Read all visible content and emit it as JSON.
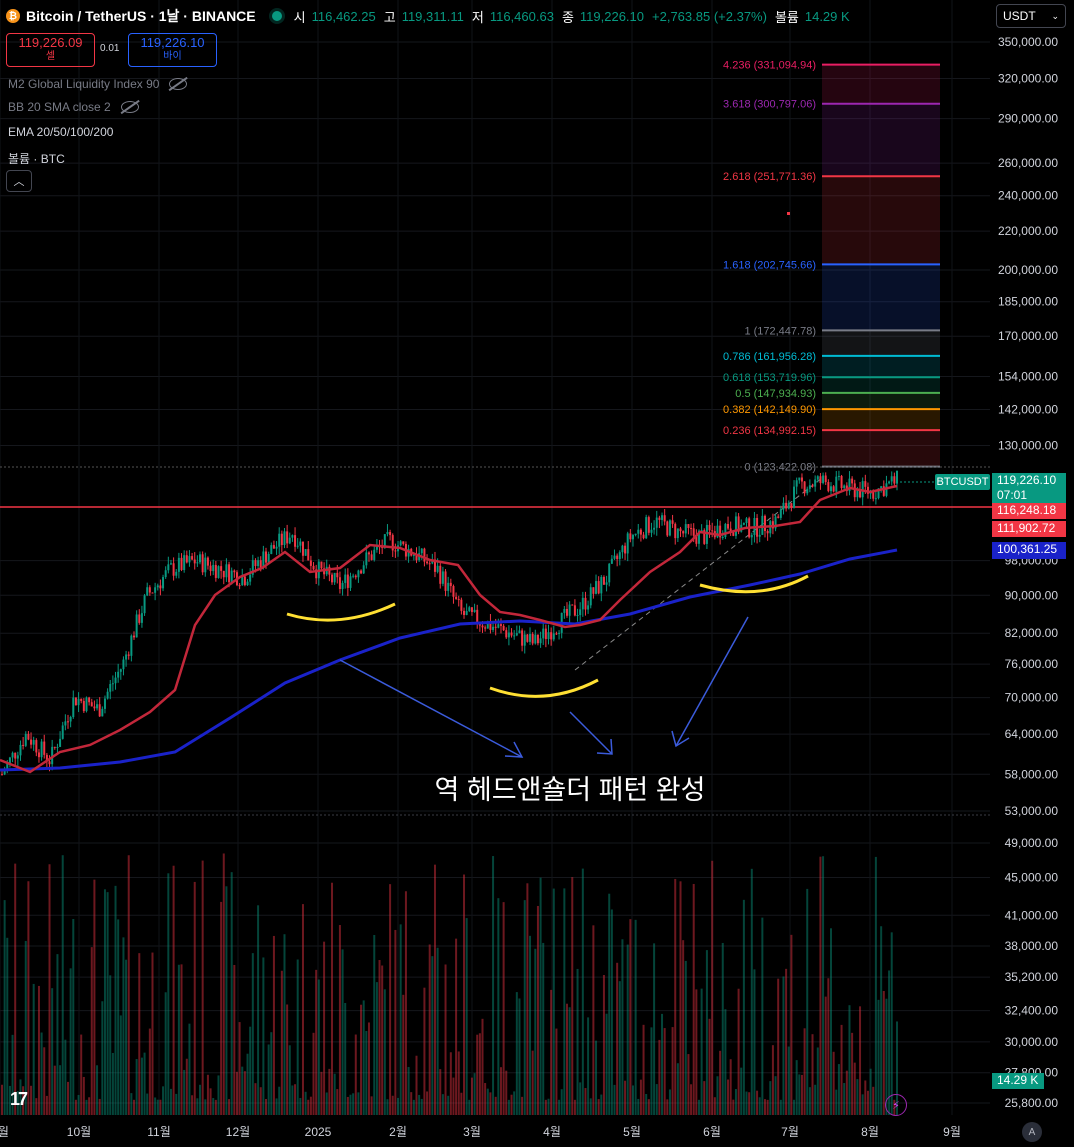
{
  "header": {
    "symbol_title": "Bitcoin / TetherUS · 1날 · BINANCE",
    "open_label": "시",
    "open": "116,462.25",
    "high_label": "고",
    "high": "119,311.11",
    "low_label": "저",
    "low": "116,460.63",
    "close_label": "종",
    "close": "119,226.10",
    "change": "+2,763.85 (+2.37%)",
    "volume_label": "볼륨",
    "volume": "14.29 K"
  },
  "trade": {
    "sell_price": "119,226.09",
    "sell_label": "셀",
    "spread": "0.01",
    "buy_price": "119,226.10",
    "buy_label": "바이"
  },
  "indicators": {
    "m2": "M2 Global Liquidity Index 90",
    "bb": "BB 20 SMA close 2",
    "ema": "EMA 20/50/100/200",
    "volume": "볼륨 · BTC"
  },
  "currency": "USDT",
  "price_axis": [
    {
      "label": "350,000.00",
      "v": 350000
    },
    {
      "label": "320,000.00",
      "v": 320000
    },
    {
      "label": "290,000.00",
      "v": 290000
    },
    {
      "label": "260,000.00",
      "v": 260000
    },
    {
      "label": "240,000.00",
      "v": 240000
    },
    {
      "label": "220,000.00",
      "v": 220000
    },
    {
      "label": "200,000.00",
      "v": 200000
    },
    {
      "label": "185,000.00",
      "v": 185000
    },
    {
      "label": "170,000.00",
      "v": 170000
    },
    {
      "label": "154,000.00",
      "v": 154000
    },
    {
      "label": "142,000.00",
      "v": 142000
    },
    {
      "label": "130,000.00",
      "v": 130000
    },
    {
      "label": "98,000.00",
      "v": 98000
    },
    {
      "label": "90,000.00",
      "v": 90000
    },
    {
      "label": "82,000.00",
      "v": 82000
    },
    {
      "label": "76,000.00",
      "v": 76000
    },
    {
      "label": "70,000.00",
      "v": 70000
    },
    {
      "label": "64,000.00",
      "v": 64000
    },
    {
      "label": "58,000.00",
      "v": 58000
    },
    {
      "label": "53,000.00",
      "v": 53000
    },
    {
      "label": "49,000.00",
      "v": 49000
    },
    {
      "label": "45,000.00",
      "v": 45000
    },
    {
      "label": "41,000.00",
      "v": 41000
    },
    {
      "label": "38,000.00",
      "v": 38000
    },
    {
      "label": "35,200.00",
      "v": 35200
    },
    {
      "label": "32,400.00",
      "v": 32400
    },
    {
      "label": "30,000.00",
      "v": 30000
    },
    {
      "label": "27,800.00",
      "v": 27800
    },
    {
      "label": "25,800.00",
      "v": 25800
    }
  ],
  "price_tags": {
    "symbol": "BTCUSDT",
    "last": "119,226.10",
    "countdown": "07:01",
    "level1": "116,248.18",
    "level2": "111,902.72",
    "ema200": "100,361.25",
    "volume": "14.29 K"
  },
  "time_axis": [
    "9월",
    "10월",
    "11월",
    "12월",
    "2025",
    "2월",
    "3월",
    "4월",
    "5월",
    "6월",
    "7월",
    "8월",
    "9월"
  ],
  "fib_levels": [
    {
      "label": "4.236 (331,094.94)",
      "v": 331094.94,
      "color": "#e91e63"
    },
    {
      "label": "3.618 (300,797.06)",
      "v": 300797.06,
      "color": "#9c27b0"
    },
    {
      "label": "2.618 (251,771.36)",
      "v": 251771.36,
      "color": "#f23645"
    },
    {
      "label": "1.618 (202,745.66)",
      "v": 202745.66,
      "color": "#2962ff"
    },
    {
      "label": "1 (172,447.78)",
      "v": 172447.78,
      "color": "#787b86"
    },
    {
      "label": "0.786 (161,956.28)",
      "v": 161956.28,
      "color": "#00bcd4"
    },
    {
      "label": "0.618 (153,719.96)",
      "v": 153719.96,
      "color": "#089981"
    },
    {
      "label": "0.5 (147,934.93)",
      "v": 147934.93,
      "color": "#4caf50"
    },
    {
      "label": "0.382 (142,149.90)",
      "v": 142149.9,
      "color": "#ff9800"
    },
    {
      "label": "0.236 (134,992.15)",
      "v": 134992.15,
      "color": "#f23645"
    },
    {
      "label": "0 (123,422.08)",
      "v": 123422.08,
      "color": "#787b86"
    }
  ],
  "annotation": "역 헤드앤숄더 패턴 완성",
  "colors": {
    "up": "#089981",
    "down": "#f23645",
    "ema_red": "#c2273a",
    "ema_blue": "#1a22c9",
    "arc": "#ffe033",
    "arrow": "#3b5bdb"
  },
  "chart_data": {
    "type": "candlestick",
    "symbol": "BTCUSDT",
    "timeframe": "1D",
    "close": [
      58000,
      64000,
      60000,
      70000,
      68000,
      76000,
      90000,
      96000,
      98000,
      96000,
      94000,
      100000,
      105000,
      96000,
      92000,
      98000,
      103000,
      100000,
      96000,
      86000,
      84000,
      82000,
      80000,
      84000,
      88000,
      94000,
      104000,
      108000,
      105000,
      104000,
      107000,
      106000,
      108000,
      118000,
      119000,
      117000,
      116000,
      119226
    ]
  }
}
